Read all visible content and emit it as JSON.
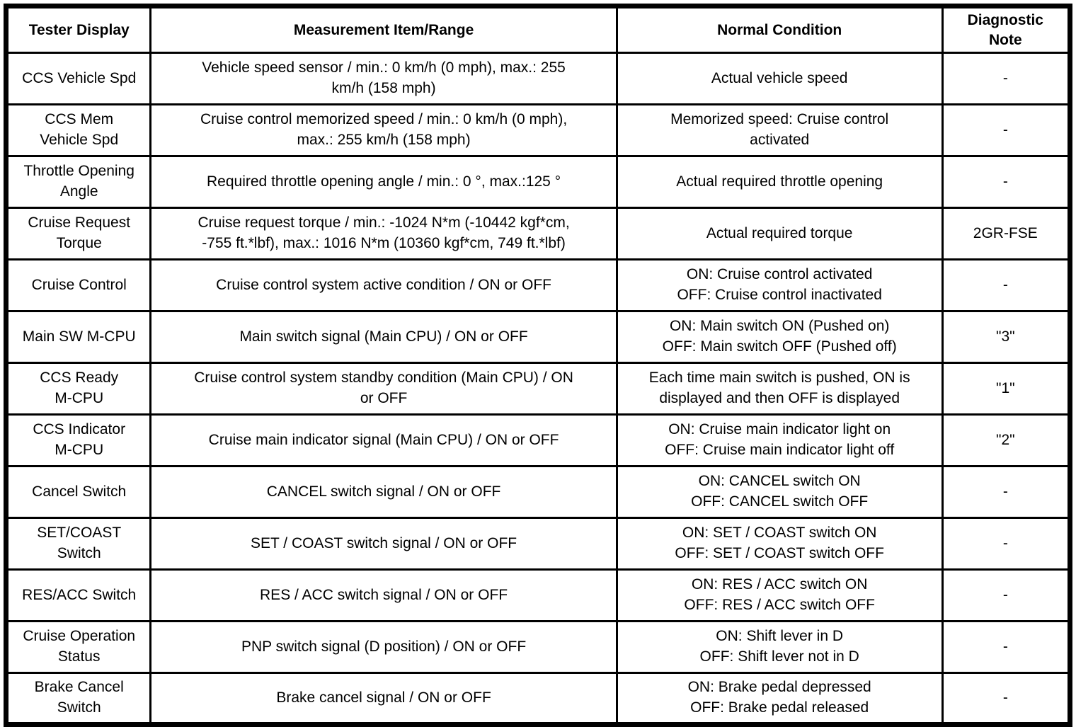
{
  "colors": {
    "background": "#ffffff",
    "border": "#000000",
    "text": "#000000"
  },
  "table": {
    "headers": {
      "tester_display": "Tester Display",
      "measurement": "Measurement Item/Range",
      "normal_condition": "Normal Condition",
      "diagnostic_note": "Diagnostic\nNote"
    },
    "rows": [
      {
        "tester_display": "CCS Vehicle Spd",
        "measurement": "Vehicle speed sensor / min.: 0 km/h (0 mph), max.: 255\nkm/h (158 mph)",
        "normal_condition": "Actual vehicle speed",
        "diagnostic_note": "-"
      },
      {
        "tester_display": "CCS Mem\nVehicle Spd",
        "measurement": "Cruise control memorized speed / min.: 0 km/h (0 mph),\nmax.: 255 km/h (158 mph)",
        "normal_condition": "Memorized speed: Cruise control\nactivated",
        "diagnostic_note": "-"
      },
      {
        "tester_display": "Throttle Opening\nAngle",
        "measurement": "Required throttle opening angle / min.: 0 °, max.:125 °",
        "normal_condition": "Actual required throttle opening",
        "diagnostic_note": "-"
      },
      {
        "tester_display": "Cruise Request\nTorque",
        "measurement": "Cruise request torque / min.: -1024 N*m (-10442 kgf*cm,\n-755 ft.*lbf), max.: 1016 N*m (10360 kgf*cm, 749 ft.*lbf)",
        "normal_condition": "Actual required torque",
        "diagnostic_note": "2GR-FSE"
      },
      {
        "tester_display": "Cruise Control",
        "measurement": "Cruise control system active condition / ON or OFF",
        "normal_condition": "ON: Cruise control activated\nOFF: Cruise control inactivated",
        "diagnostic_note": "-"
      },
      {
        "tester_display": "Main SW M-CPU",
        "measurement": "Main switch signal (Main CPU) / ON or OFF",
        "normal_condition": "ON: Main switch ON (Pushed on)\nOFF: Main switch OFF (Pushed off)",
        "diagnostic_note": "\"3\""
      },
      {
        "tester_display": "CCS Ready\nM-CPU",
        "measurement": "Cruise control system standby condition (Main CPU) / ON\nor OFF",
        "normal_condition": "Each time main switch is pushed, ON is\ndisplayed and then OFF is displayed",
        "diagnostic_note": "\"1\""
      },
      {
        "tester_display": "CCS Indicator\nM-CPU",
        "measurement": "Cruise main indicator signal (Main CPU) / ON or OFF",
        "normal_condition": "ON: Cruise main indicator light on\nOFF: Cruise main indicator light off",
        "diagnostic_note": "\"2\""
      },
      {
        "tester_display": "Cancel Switch",
        "measurement": "CANCEL switch signal / ON or OFF",
        "normal_condition": "ON: CANCEL switch ON\nOFF: CANCEL switch OFF",
        "diagnostic_note": "-"
      },
      {
        "tester_display": "SET/COAST\nSwitch",
        "measurement": "SET / COAST switch signal / ON or OFF",
        "normal_condition": "ON: SET / COAST switch ON\nOFF: SET / COAST switch OFF",
        "diagnostic_note": "-"
      },
      {
        "tester_display": "RES/ACC Switch",
        "measurement": "RES / ACC switch signal / ON or OFF",
        "normal_condition": "ON: RES / ACC switch ON\nOFF: RES / ACC switch OFF",
        "diagnostic_note": "-"
      },
      {
        "tester_display": "Cruise Operation\nStatus",
        "measurement": "PNP switch signal (D position) / ON or OFF",
        "normal_condition": "ON: Shift lever in D\nOFF: Shift lever not in D",
        "diagnostic_note": "-"
      },
      {
        "tester_display": "Brake Cancel\nSwitch",
        "measurement": "Brake cancel signal / ON or OFF",
        "normal_condition": "ON: Brake pedal depressed\nOFF: Brake pedal released",
        "diagnostic_note": "-"
      }
    ]
  }
}
